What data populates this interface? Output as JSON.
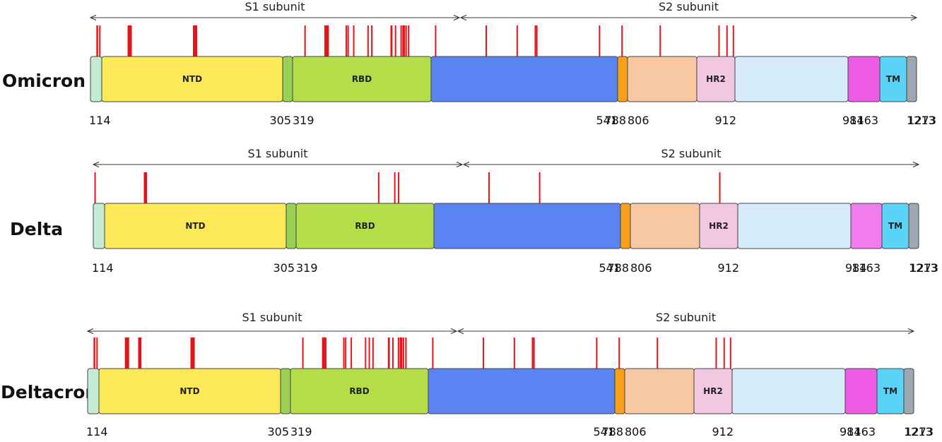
{
  "domains": [
    {
      "key": "d114",
      "label": "",
      "color": "#c3ecd4"
    },
    {
      "key": "ntd",
      "label": "NTD",
      "color": "#fce95a"
    },
    {
      "key": "link1",
      "label": "",
      "color": "#98d154"
    },
    {
      "key": "rbd",
      "label": "RBD",
      "color": "#b5dd4a"
    },
    {
      "key": "sd",
      "label": "",
      "color": "#5b84f3"
    },
    {
      "key": "fp",
      "label": "",
      "color": "#f9a01a"
    },
    {
      "key": "hr1",
      "label": "",
      "color": "#f8c8a2"
    },
    {
      "key": "hr2",
      "label": "HR2",
      "color": "#f1c7e1"
    },
    {
      "key": "ch",
      "label": "",
      "color": "#d6ecfa"
    },
    {
      "key": "cd",
      "label": "",
      "color": "#ee5ce6"
    },
    {
      "key": "tm",
      "label": "TM",
      "color": "#5ad3f6"
    },
    {
      "key": "ct",
      "label": "",
      "color": "#9ea8b2"
    }
  ],
  "positions": [
    "114",
    "305",
    "319",
    "541",
    "788",
    "806",
    "912",
    "984",
    "1163",
    "1213",
    "1273"
  ],
  "subunits": {
    "s1": "S1 subunit",
    "s2": "S2 subunit"
  },
  "variants": [
    {
      "name": "Omicron",
      "cd_color": "#ee5ce6",
      "mutations": [
        67,
        69,
        70,
        95,
        142,
        143,
        144,
        145,
        211,
        212,
        213,
        214,
        339,
        371,
        373,
        375,
        376,
        405,
        408,
        417,
        440,
        446,
        477,
        478,
        484,
        493,
        496,
        498,
        501,
        505,
        547,
        614,
        655,
        679,
        681,
        764,
        796,
        856,
        954,
        969,
        981
      ]
    },
    {
      "name": "Delta",
      "cd_color": "#f07ced",
      "mutations": [
        19,
        156,
        157,
        158,
        452,
        478,
        484,
        614,
        681,
        950
      ]
    },
    {
      "name": "Deltacron",
      "cd_color": "#ee5ce6",
      "mutations": [
        67,
        69,
        70,
        95,
        142,
        143,
        144,
        145,
        156,
        157,
        158,
        211,
        212,
        213,
        214,
        339,
        371,
        373,
        375,
        376,
        405,
        408,
        417,
        440,
        446,
        452,
        477,
        478,
        484,
        493,
        496,
        498,
        501,
        505,
        547,
        614,
        655,
        679,
        681,
        764,
        796,
        856,
        954,
        969,
        981
      ]
    }
  ]
}
